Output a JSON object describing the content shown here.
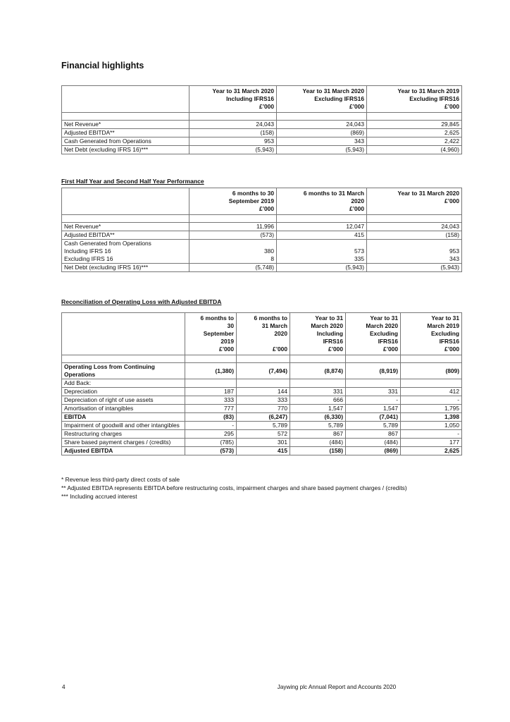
{
  "title": "Financial highlights",
  "table1": {
    "headers": [
      "",
      "Year to 31 March 2020\nIncluding IFRS16\n£’000",
      "Year to 31 March 2020\nExcluding IFRS16\n£’000",
      "Year to 31 March 2019\nExcluding IFRS16\n£’000"
    ],
    "rows": [
      {
        "label": "Net Revenue*",
        "values": [
          "24,043",
          "24,043",
          "29,845"
        ]
      },
      {
        "label": "Adjusted EBITDA**",
        "values": [
          "(158)",
          "(869)",
          "2,625"
        ]
      },
      {
        "label": "Cash Generated from Operations",
        "values": [
          "953",
          "343",
          "2,422"
        ]
      },
      {
        "label": "Net Debt (excluding IFRS 16)***",
        "values": [
          "(5,943)",
          "(5,943)",
          "(4,960)"
        ]
      }
    ]
  },
  "section2_title": "First Half Year and Second Half Year Performance",
  "table2": {
    "headers": [
      "",
      "6 months to 30\nSeptember 2019\n£’000",
      "6 months to 31 March\n2020\n£’000",
      "Year to 31 March 2020\n£’000"
    ],
    "rows": [
      {
        "label": "Net Revenue*",
        "values": [
          "11,996",
          "12,047",
          "24,043"
        ]
      },
      {
        "label": "Adjusted EBITDA**",
        "values": [
          "(573)",
          "415",
          "(158)"
        ]
      },
      {
        "label": "Cash Generated from Operations\nIncluding IFRS 16\nExcluding IFRS 16",
        "values": [
          "\n380\n8",
          "\n573\n335",
          "\n953\n343"
        ]
      },
      {
        "label": "Net Debt (excluding IFRS 16)***",
        "values": [
          "(5,748)",
          "(5,943)",
          "(5,943)"
        ]
      }
    ]
  },
  "section3_title": "Reconciliation of Operating Loss with Adjusted EBITDA",
  "table3": {
    "headers": [
      "",
      "6 months to\n30\nSeptember\n2019\n£’000",
      "6 months to\n31 March\n2020\n\n£’000",
      "Year to 31\nMarch 2020\nIncluding\nIFRS16\n£’000",
      "Year to 31\nMarch 2020\nExcluding\nIFRS16\n£’000",
      "Year to 31\nMarch 2019\nExcluding\nIFRS16\n£’000"
    ],
    "rows": [
      {
        "label": "Operating Loss from Continuing Operations",
        "bold": true,
        "values": [
          "(1,380)",
          "(7,494)",
          "(8,874)",
          "(8,919)",
          "(809)"
        ]
      },
      {
        "label": "Add Back:",
        "values": [
          "",
          "",
          "",
          "",
          ""
        ]
      },
      {
        "label": "Depreciation",
        "values": [
          "187",
          "144",
          "331",
          "331",
          "412"
        ]
      },
      {
        "label": "Depreciation of right of use assets",
        "values": [
          "333",
          "333",
          "666",
          "-",
          "-"
        ]
      },
      {
        "label": "Amortisation of intangibles",
        "values": [
          "777",
          "770",
          "1,547",
          "1,547",
          "1,795"
        ]
      },
      {
        "label": "EBITDA",
        "bold": true,
        "values": [
          "(83)",
          "(6,247)",
          "(6,330)",
          "(7,041)",
          "1,398"
        ]
      },
      {
        "label": "Impairment of goodwill and other intangibles",
        "values": [
          "-",
          "5,789",
          "5,789",
          "5,789",
          "1,050"
        ]
      },
      {
        "label": "Restructuring charges",
        "values": [
          "295",
          "572",
          "867",
          "867",
          "-"
        ]
      },
      {
        "label": "Share based payment charges / (credits)",
        "values": [
          "(785)",
          "301",
          "(484)",
          "(484)",
          "177"
        ]
      },
      {
        "label": "Adjusted EBITDA",
        "bold": true,
        "values": [
          "(573)",
          "415",
          "(158)",
          "(869)",
          "2,625"
        ]
      }
    ]
  },
  "footnotes": [
    "* Revenue less third-party direct costs of sale",
    "** Adjusted EBITDA represents EBITDA before restructuring costs, impairment charges and share based payment charges / (credits)",
    "*** Including accrued interest"
  ],
  "footer": {
    "page_number": "4",
    "text": "Jaywing plc Annual Report and Accounts 2020"
  }
}
